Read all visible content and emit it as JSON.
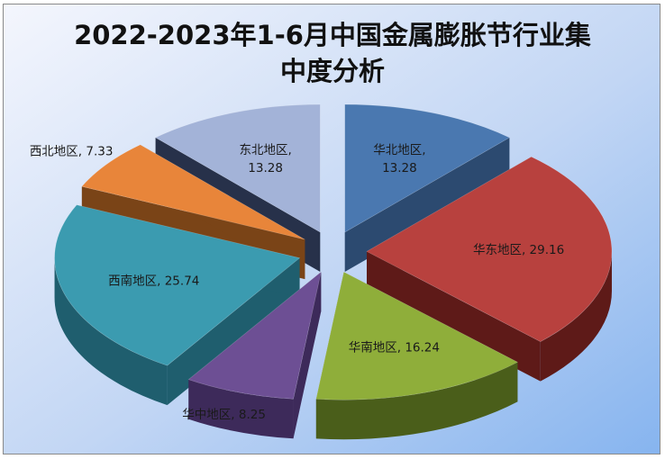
{
  "chart_data": {
    "type": "pie",
    "style": "3d-exploded",
    "title_lines": [
      "2022-2023年1-6月中国金属膨胀节行业集",
      "中度分析"
    ],
    "legend": "none",
    "data_label_format": "category, value",
    "slices": [
      {
        "category": "华北地区",
        "value": 13.28,
        "label_lines": [
          "华北地区,",
          "13.28"
        ],
        "color": "#4a78b0",
        "side_color": "#2c4a70"
      },
      {
        "category": "华东地区",
        "value": 29.16,
        "label_lines": [
          "华东地区, 29.16"
        ],
        "color": "#b8413e",
        "side_color": "#5e1a18"
      },
      {
        "category": "华南地区",
        "value": 16.24,
        "label_lines": [
          "华南地区, 16.24"
        ],
        "color": "#8fae3a",
        "side_color": "#4a5e1a"
      },
      {
        "category": "华中地区",
        "value": 8.25,
        "label_lines": [
          "华中地区, 8.25"
        ],
        "color": "#6d4f94",
        "side_color": "#3d2a5a"
      },
      {
        "category": "西南地区",
        "value": 25.74,
        "label_lines": [
          "西南地区, 25.74"
        ],
        "color": "#3b9bb0",
        "side_color": "#1f5e6e"
      },
      {
        "category": "西北地区",
        "value": 7.33,
        "label_lines": [
          "西北地区, 7.33"
        ],
        "color": "#e8853a",
        "side_color": "#7a4417"
      },
      {
        "category": "东北地区",
        "value": 13.28,
        "label_lines": [
          "东北地区,",
          "13.28"
        ],
        "color": "#a3b3d8",
        "side_color": "#27314a"
      }
    ]
  }
}
